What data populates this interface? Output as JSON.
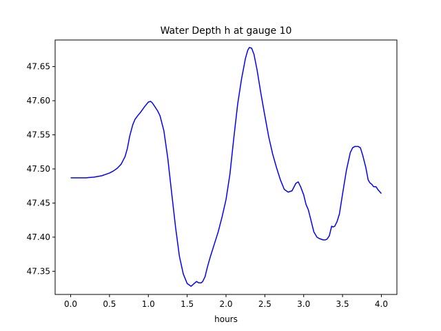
{
  "chart_data": {
    "type": "line",
    "title": "Water Depth h at gauge 10",
    "xlabel": "hours",
    "ylabel": "",
    "xlim": [
      -0.2,
      4.2
    ],
    "ylim": [
      47.316,
      47.689
    ],
    "xticks": [
      0.0,
      0.5,
      1.0,
      1.5,
      2.0,
      2.5,
      3.0,
      3.5,
      4.0
    ],
    "xtick_labels": [
      "0.0",
      "0.5",
      "1.0",
      "1.5",
      "2.0",
      "2.5",
      "3.0",
      "3.5",
      "4.0"
    ],
    "yticks": [
      47.35,
      47.4,
      47.45,
      47.5,
      47.55,
      47.6,
      47.65
    ],
    "ytick_labels": [
      "47.35",
      "47.40",
      "47.45",
      "47.50",
      "47.55",
      "47.60",
      "47.65"
    ],
    "grid": false,
    "series": [
      {
        "color": "#0000ff",
        "x": [
          0.0,
          0.1,
          0.2,
          0.3,
          0.4,
          0.5,
          0.55,
          0.6,
          0.65,
          0.7,
          0.73,
          0.76,
          0.8,
          0.83,
          0.87,
          0.9,
          0.95,
          1.0,
          1.03,
          1.05,
          1.08,
          1.12,
          1.15,
          1.2,
          1.25,
          1.3,
          1.35,
          1.4,
          1.45,
          1.5,
          1.55,
          1.6,
          1.62,
          1.65,
          1.68,
          1.7,
          1.73,
          1.76,
          1.8,
          1.85,
          1.9,
          1.95,
          2.0,
          2.05,
          2.1,
          2.15,
          2.2,
          2.25,
          2.28,
          2.3,
          2.33,
          2.36,
          2.4,
          2.45,
          2.5,
          2.55,
          2.6,
          2.65,
          2.7,
          2.75,
          2.8,
          2.85,
          2.9,
          2.93,
          2.96,
          3.0,
          3.03,
          3.06,
          3.1,
          3.13,
          3.17,
          3.2,
          3.25,
          3.28,
          3.3,
          3.33,
          3.36,
          3.38,
          3.4,
          3.43,
          3.46,
          3.5,
          3.55,
          3.6,
          3.63,
          3.66,
          3.7,
          3.73,
          3.76,
          3.8,
          3.83,
          3.85,
          3.88,
          3.9,
          3.93,
          3.96,
          4.0
        ],
        "y": [
          47.487,
          47.487,
          47.487,
          47.488,
          47.49,
          47.494,
          47.497,
          47.501,
          47.507,
          47.518,
          47.53,
          47.548,
          47.565,
          47.573,
          47.579,
          47.583,
          47.591,
          47.598,
          47.599,
          47.597,
          47.592,
          47.585,
          47.578,
          47.556,
          47.516,
          47.465,
          47.415,
          47.372,
          47.346,
          47.332,
          47.328,
          47.333,
          47.335,
          47.333,
          47.333,
          47.335,
          47.342,
          47.356,
          47.372,
          47.39,
          47.408,
          47.43,
          47.455,
          47.492,
          47.545,
          47.595,
          47.632,
          47.662,
          47.674,
          47.678,
          47.677,
          47.668,
          47.645,
          47.61,
          47.578,
          47.547,
          47.522,
          47.502,
          47.484,
          47.47,
          47.466,
          47.468,
          47.479,
          47.481,
          47.474,
          47.462,
          47.448,
          47.44,
          47.422,
          47.408,
          47.4,
          47.398,
          47.396,
          47.396,
          47.397,
          47.402,
          47.416,
          47.415,
          47.416,
          47.423,
          47.434,
          47.463,
          47.498,
          47.524,
          47.531,
          47.533,
          47.533,
          47.531,
          47.52,
          47.502,
          47.484,
          47.48,
          47.477,
          47.474,
          47.474,
          47.469,
          47.464
        ]
      }
    ]
  }
}
